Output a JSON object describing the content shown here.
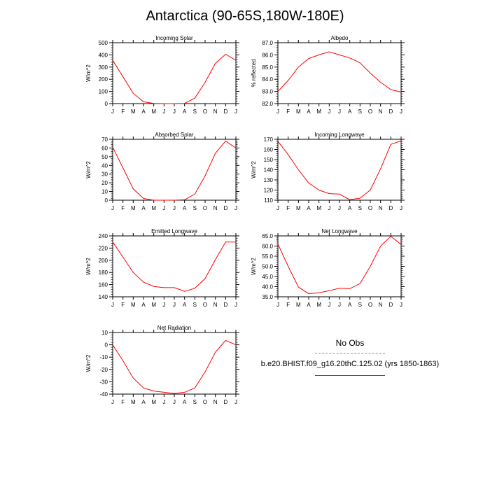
{
  "title": "Antarctica (90-65S,180W-180E)",
  "legend": {
    "obs_label": "No Obs",
    "obs_color": "#7b7bff",
    "model_label": "b.e20.BHIST.f09_g16.20thC.125.02 (yrs 1850-1863)",
    "model_color": "#ff0000"
  },
  "chart_data": [
    {
      "type": "line",
      "title": "Incoming Solar",
      "ylabel": "W/m^2",
      "categories": [
        "J",
        "F",
        "M",
        "A",
        "M",
        "J",
        "J",
        "A",
        "S",
        "O",
        "N",
        "D",
        "J"
      ],
      "ylim": [
        0,
        500
      ],
      "yticks": [
        0,
        100,
        200,
        300,
        400,
        500
      ],
      "yticklabels": [
        "0",
        "100",
        "200",
        "300",
        "400",
        "500"
      ],
      "series": [
        {
          "color": "#ff0000",
          "values": [
            355,
            220,
            85,
            15,
            1,
            0,
            0,
            2,
            45,
            175,
            330,
            405,
            355
          ]
        }
      ]
    },
    {
      "type": "line",
      "title": "Albedo",
      "ylabel": "% reflected",
      "categories": [
        "J",
        "F",
        "M",
        "A",
        "M",
        "J",
        "J",
        "A",
        "S",
        "O",
        "N",
        "D",
        "J"
      ],
      "ylim": [
        82,
        87
      ],
      "yticks": [
        82,
        83,
        84,
        85,
        86,
        87
      ],
      "yticklabels": [
        "82.0",
        "83.0",
        "84.0",
        "85.0",
        "86.0",
        "87.0"
      ],
      "series": [
        {
          "color": "#ff0000",
          "values": [
            83.0,
            83.9,
            85.0,
            85.7,
            86.0,
            86.25,
            86.0,
            85.75,
            85.35,
            84.5,
            83.75,
            83.15,
            82.95
          ]
        }
      ]
    },
    {
      "type": "line",
      "title": "Absorbed Solar",
      "ylabel": "W/m^2",
      "categories": [
        "J",
        "F",
        "M",
        "A",
        "M",
        "J",
        "J",
        "A",
        "S",
        "O",
        "N",
        "D",
        "J"
      ],
      "ylim": [
        0,
        70
      ],
      "yticks": [
        0,
        10,
        20,
        30,
        40,
        50,
        60,
        70
      ],
      "yticklabels": [
        "0",
        "10",
        "20",
        "30",
        "40",
        "50",
        "60",
        "70"
      ],
      "series": [
        {
          "color": "#ff0000",
          "values": [
            61,
            37,
            13,
            2,
            0,
            0,
            0,
            0.5,
            7,
            28,
            54,
            68,
            60
          ]
        }
      ]
    },
    {
      "type": "line",
      "title": "Incoming Longwave",
      "ylabel": "W/m^2",
      "categories": [
        "J",
        "F",
        "M",
        "A",
        "M",
        "J",
        "J",
        "A",
        "S",
        "O",
        "N",
        "D",
        "J"
      ],
      "ylim": [
        110,
        170
      ],
      "yticks": [
        110,
        120,
        130,
        140,
        150,
        160,
        170
      ],
      "yticklabels": [
        "110",
        "120",
        "130",
        "140",
        "150",
        "160",
        "170"
      ],
      "series": [
        {
          "color": "#ff0000",
          "values": [
            168,
            155,
            140,
            127,
            120,
            116.5,
            116,
            110.5,
            112,
            120,
            141,
            165,
            168.5
          ]
        }
      ]
    },
    {
      "type": "line",
      "title": "Emitted Longwave",
      "ylabel": "W/m^2",
      "categories": [
        "J",
        "F",
        "M",
        "A",
        "M",
        "J",
        "J",
        "A",
        "S",
        "O",
        "N",
        "D",
        "J"
      ],
      "ylim": [
        140,
        240
      ],
      "yticks": [
        140,
        160,
        180,
        200,
        220,
        240
      ],
      "yticklabels": [
        "140",
        "160",
        "180",
        "200",
        "220",
        "240"
      ],
      "series": [
        {
          "color": "#ff0000",
          "values": [
            230,
            205,
            180,
            164,
            157,
            155,
            155,
            149,
            154,
            170,
            201,
            230,
            230
          ]
        }
      ]
    },
    {
      "type": "line",
      "title": "Net Longwave",
      "ylabel": "W/m^2",
      "categories": [
        "J",
        "F",
        "M",
        "A",
        "M",
        "J",
        "J",
        "A",
        "S",
        "O",
        "N",
        "D",
        "J"
      ],
      "ylim": [
        35,
        65
      ],
      "yticks": [
        35,
        40,
        45,
        50,
        55,
        60,
        65
      ],
      "yticklabels": [
        "35.0",
        "40.0",
        "45.0",
        "50.0",
        "55.0",
        "60.0",
        "65.0"
      ],
      "series": [
        {
          "color": "#ff0000",
          "values": [
            61,
            50,
            39.8,
            36.5,
            37,
            38,
            39.2,
            39,
            41.5,
            50,
            60,
            64.8,
            60.8
          ]
        }
      ]
    },
    {
      "type": "line",
      "title": "Net Radiation",
      "ylabel": "W/m^2",
      "categories": [
        "J",
        "F",
        "M",
        "A",
        "M",
        "J",
        "J",
        "A",
        "S",
        "O",
        "N",
        "D",
        "J"
      ],
      "ylim": [
        -40,
        10
      ],
      "yticks": [
        -40,
        -30,
        -20,
        -10,
        0,
        10
      ],
      "yticklabels": [
        "-40",
        "-30",
        "-20",
        "-10",
        "0",
        "10"
      ],
      "series": [
        {
          "color": "#ff0000",
          "values": [
            0,
            -13,
            -27,
            -35,
            -37.5,
            -38.5,
            -39.5,
            -38.5,
            -35,
            -22,
            -6,
            3.5,
            0
          ]
        }
      ]
    }
  ]
}
